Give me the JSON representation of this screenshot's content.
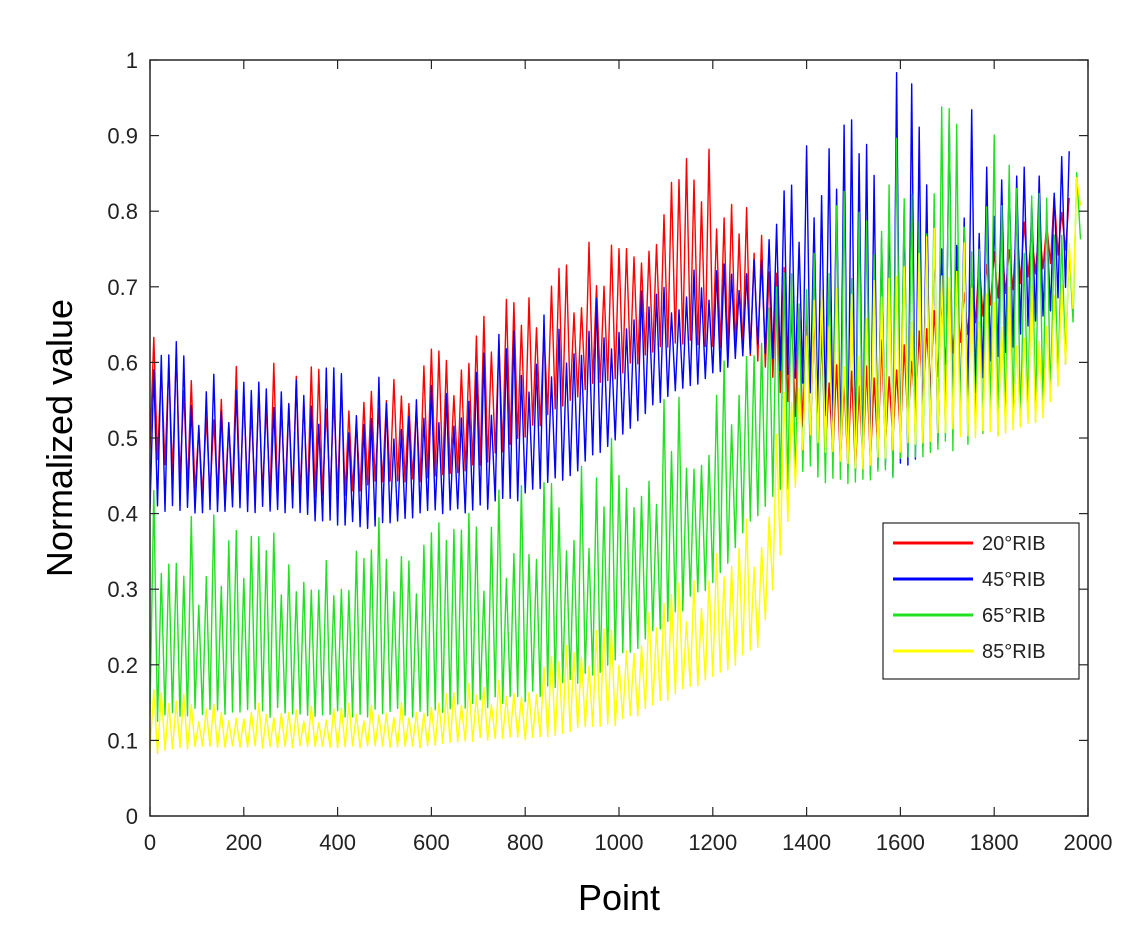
{
  "chart_data": {
    "type": "line",
    "title": "",
    "xlabel": "Point",
    "ylabel": "Normalized value",
    "xlim": [
      0,
      2000
    ],
    "ylim": [
      0,
      1
    ],
    "xticks": [
      0,
      200,
      400,
      600,
      800,
      1000,
      1200,
      1400,
      1600,
      1800,
      2000
    ],
    "yticks": [
      0,
      0.1,
      0.2,
      0.3,
      0.4,
      0.5,
      0.6,
      0.7,
      0.8,
      0.9,
      1
    ],
    "grid": false,
    "legend_position": "right",
    "series": [
      {
        "name": "20°RIB",
        "color": "#ff0000",
        "x": [
          0,
          100,
          200,
          300,
          400,
          500,
          600,
          700,
          800,
          900,
          1000,
          1100,
          1200,
          1300,
          1400,
          1500,
          1600,
          1700,
          1800,
          1900,
          1960
        ],
        "low": [
          0.48,
          0.42,
          0.42,
          0.42,
          0.42,
          0.44,
          0.44,
          0.46,
          0.5,
          0.55,
          0.58,
          0.62,
          0.62,
          0.6,
          0.5,
          0.45,
          0.5,
          0.6,
          0.68,
          0.72,
          0.75
        ],
        "high": [
          0.68,
          0.58,
          0.6,
          0.6,
          0.6,
          0.58,
          0.62,
          0.66,
          0.7,
          0.75,
          0.82,
          0.86,
          0.9,
          0.78,
          0.68,
          0.6,
          0.65,
          0.7,
          0.78,
          0.82,
          0.85
        ]
      },
      {
        "name": "45°RIB",
        "color": "#0000ff",
        "x": [
          0,
          100,
          200,
          300,
          400,
          500,
          600,
          700,
          800,
          900,
          1000,
          1100,
          1200,
          1300,
          1400,
          1500,
          1600,
          1700,
          1800,
          1900,
          1960
        ],
        "low": [
          0.4,
          0.4,
          0.4,
          0.4,
          0.38,
          0.38,
          0.4,
          0.4,
          0.42,
          0.45,
          0.5,
          0.55,
          0.58,
          0.62,
          0.55,
          0.45,
          0.45,
          0.5,
          0.6,
          0.65,
          0.7
        ],
        "high": [
          0.7,
          0.58,
          0.6,
          0.6,
          0.6,
          0.58,
          0.6,
          0.62,
          0.66,
          0.68,
          0.7,
          0.72,
          0.74,
          0.78,
          0.92,
          0.97,
          0.99,
          0.95,
          0.92,
          0.88,
          0.9
        ]
      },
      {
        "name": "65°RIB",
        "color": "#22e022",
        "x": [
          0,
          100,
          200,
          300,
          400,
          500,
          600,
          700,
          800,
          900,
          1000,
          1100,
          1200,
          1300,
          1400,
          1500,
          1600,
          1700,
          1800,
          1900,
          1960,
          1990
        ],
        "low": [
          0.12,
          0.13,
          0.13,
          0.13,
          0.13,
          0.13,
          0.13,
          0.14,
          0.15,
          0.17,
          0.2,
          0.25,
          0.3,
          0.4,
          0.45,
          0.42,
          0.45,
          0.48,
          0.5,
          0.52,
          0.6,
          0.8
        ],
        "high": [
          0.45,
          0.4,
          0.4,
          0.4,
          0.4,
          0.4,
          0.4,
          0.42,
          0.45,
          0.48,
          0.52,
          0.56,
          0.6,
          0.65,
          0.8,
          0.9,
          0.95,
          0.95,
          0.95,
          0.9,
          0.85,
          1.0
        ]
      },
      {
        "name": "85°RIB",
        "color": "#ffff00",
        "x": [
          0,
          100,
          200,
          300,
          400,
          500,
          600,
          700,
          800,
          900,
          1000,
          1100,
          1200,
          1300,
          1400,
          1500,
          1600,
          1700,
          1800,
          1900,
          1960,
          1990
        ],
        "low": [
          0.08,
          0.09,
          0.09,
          0.09,
          0.09,
          0.09,
          0.09,
          0.1,
          0.1,
          0.11,
          0.12,
          0.15,
          0.18,
          0.22,
          0.5,
          0.45,
          0.48,
          0.5,
          0.5,
          0.52,
          0.6,
          0.85
        ],
        "high": [
          0.2,
          0.15,
          0.15,
          0.15,
          0.15,
          0.15,
          0.16,
          0.18,
          0.2,
          0.23,
          0.26,
          0.3,
          0.35,
          0.42,
          0.7,
          0.7,
          0.75,
          0.8,
          0.72,
          0.7,
          0.8,
          1.0
        ]
      }
    ]
  }
}
